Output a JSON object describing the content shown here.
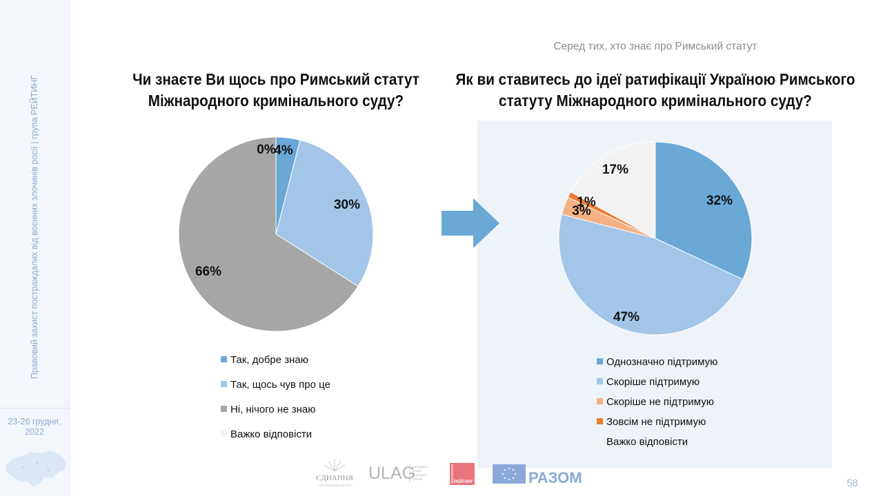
{
  "sidebar": {
    "vertical_text": "Правовий захист постраждалих від воєнних злочинів росії | група РЕЙТИНГ",
    "date_line1": "23-26 грудня,",
    "date_line2": "2022"
  },
  "subtitle": "Серед тих, хто знає про Римський статут",
  "chart_data": [
    {
      "type": "pie",
      "title": "Чи знаєте Ви щось про Римський статут Міжнародного кримінального суду?",
      "categories": [
        "Так, добре знаю",
        "Так, щось чув про це",
        "Ні, нічого не знаю",
        "Важко відповісти"
      ],
      "values": [
        4,
        30,
        66,
        0
      ],
      "value_labels": [
        "4%",
        "30%",
        "66%",
        "0%"
      ],
      "colors": [
        "#6aa8d6",
        "#a3c6e8",
        "#a6a6a6",
        "#f2f2f2"
      ],
      "legend": "bottom"
    },
    {
      "type": "pie",
      "title": "Як ви ставитесь до ідеї ратифікації Україною Римського статуту Міжнародного кримінального суду?",
      "categories": [
        "Однозначно підтримую",
        "Скоріше підтримую",
        "Скоріше не підтримую",
        "Зовсім не підтримую",
        "Важко відповісти"
      ],
      "values": [
        32,
        47,
        3,
        1,
        17
      ],
      "value_labels": [
        "32%",
        "47%",
        "3%",
        "1%",
        "17%"
      ],
      "colors": [
        "#6aa8d6",
        "#a3c6e8",
        "#f4b183",
        "#ed7d31",
        "#f2f2f2"
      ],
      "legend": "bottom"
    }
  ],
  "logos": {
    "ednannia": "ЄДНАННЯ",
    "ednannia_sub": "СТРАТЕГІЧНИЙ ПАРТНЕР",
    "ulag": "ULAG",
    "ulag_sub1": "UKRAINIAN",
    "ulag_sub2": "LEGAL",
    "ulag_sub3": "ADVISORY",
    "ulag_sub4": "GROUP",
    "rating": "РЕЙТИНГ",
    "razom": "РАЗОМ"
  },
  "page_number": "58"
}
